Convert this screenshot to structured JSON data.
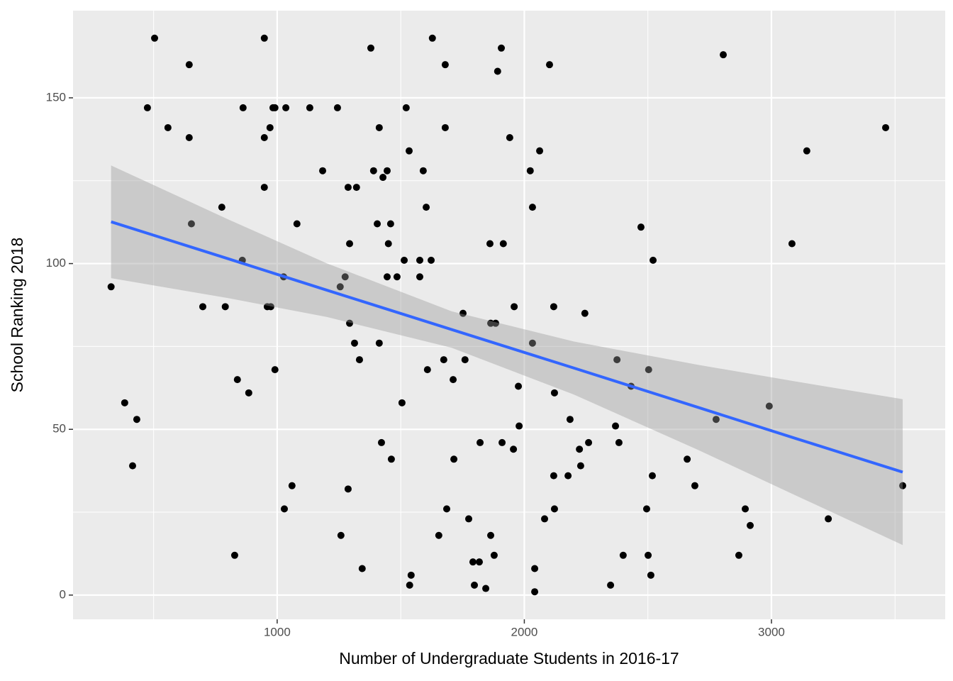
{
  "chart_data": {
    "type": "scatter",
    "x_label": "Number of Undergraduate Students in 2016-17",
    "y_label": "School Ranking 2018",
    "xlim": [
      174,
      3703
    ],
    "ylim": [
      -7.3,
      176.3
    ],
    "xticks": [
      1000,
      2000,
      3000
    ],
    "yticks": [
      0,
      50,
      100,
      150
    ],
    "xminor": [
      500,
      1500,
      2500,
      3500
    ],
    "yminor": [
      25,
      75,
      125
    ],
    "grid": true,
    "color": "#000000",
    "x": [
      328,
      383,
      415,
      432,
      475,
      504,
      558,
      644,
      644,
      653,
      699,
      776,
      790,
      828,
      839,
      859,
      862,
      885,
      948,
      948,
      948,
      960,
      971,
      974,
      983,
      991,
      991,
      1026,
      1029,
      1035,
      1060,
      1080,
      1132,
      1184,
      1244,
      1255,
      1258,
      1275,
      1287,
      1313,
      1321,
      1333,
      1344,
      1287,
      1293,
      1293,
      1379,
      1390,
      1405,
      1413,
      1413,
      1422,
      1428,
      1445,
      1445,
      1450,
      1459,
      1462,
      1485,
      1505,
      1514,
      1522,
      1534,
      1536,
      1542,
      1577,
      1577,
      1591,
      1603,
      1608,
      1623,
      1628,
      1654,
      1674,
      1680,
      1680,
      1686,
      1712,
      1715,
      1752,
      1760,
      1775,
      1792,
      1798,
      1818,
      1821,
      1844,
      1861,
      1864,
      1864,
      1878,
      1884,
      1892,
      1907,
      1910,
      1915,
      1941,
      1956,
      1959,
      1976,
      1979,
      2024,
      2033,
      2033,
      2042,
      2042,
      2062,
      2082,
      2102,
      2119,
      2119,
      2122,
      2122,
      2177,
      2185,
      2223,
      2228,
      2245,
      2260,
      2349,
      2369,
      2375,
      2383,
      2400,
      2432,
      2472,
      2495,
      2503,
      2501,
      2512,
      2518,
      2521,
      2659,
      2690,
      2776,
      2805,
      2868,
      2894,
      2914,
      2991,
      3083,
      3143,
      3230,
      3462,
      3531
    ],
    "values": [
      93,
      58,
      39,
      53,
      147,
      168,
      141,
      160,
      138,
      112,
      87,
      117,
      87,
      12,
      65,
      101,
      147,
      61,
      168,
      138,
      123,
      87,
      141,
      87,
      147,
      147,
      68,
      96,
      26,
      147,
      33,
      112,
      147,
      128,
      147,
      93,
      18,
      96,
      123,
      76,
      123,
      71,
      8,
      32,
      82,
      106,
      165,
      128,
      112,
      141,
      76,
      46,
      126,
      128,
      96,
      106,
      112,
      41,
      96,
      58,
      101,
      147,
      134,
      3,
      6,
      101,
      96,
      128,
      117,
      68,
      101,
      168,
      18,
      71,
      141,
      160,
      26,
      65,
      41,
      85,
      71,
      23,
      10,
      3,
      10,
      46,
      2,
      106,
      82,
      18,
      12,
      82,
      158,
      165,
      46,
      106,
      138,
      44,
      87,
      63,
      51,
      128,
      76,
      117,
      8,
      1,
      134,
      23,
      160,
      87,
      36,
      61,
      26,
      36,
      53,
      44,
      39,
      85,
      46,
      3,
      51,
      71,
      46,
      12,
      63,
      111,
      26,
      68,
      12,
      6,
      36,
      101,
      41,
      33,
      53,
      163,
      12,
      26,
      21,
      57,
      106,
      134,
      23,
      141,
      33
    ],
    "fit": {
      "color": "#3366ff",
      "x": [
        328,
        800,
        1200,
        1706,
        2200,
        2700,
        3100,
        3531
      ],
      "values": [
        112.6,
        101.5,
        92.0,
        80.1,
        68.5,
        56.7,
        47.2,
        37.1
      ],
      "lower": [
        95.6,
        89.6,
        83.9,
        74.6,
        60.5,
        43.9,
        30.0,
        15.1
      ],
      "upper": [
        129.6,
        113.4,
        100.1,
        85.6,
        76.5,
        69.5,
        64.4,
        59.1
      ]
    }
  }
}
